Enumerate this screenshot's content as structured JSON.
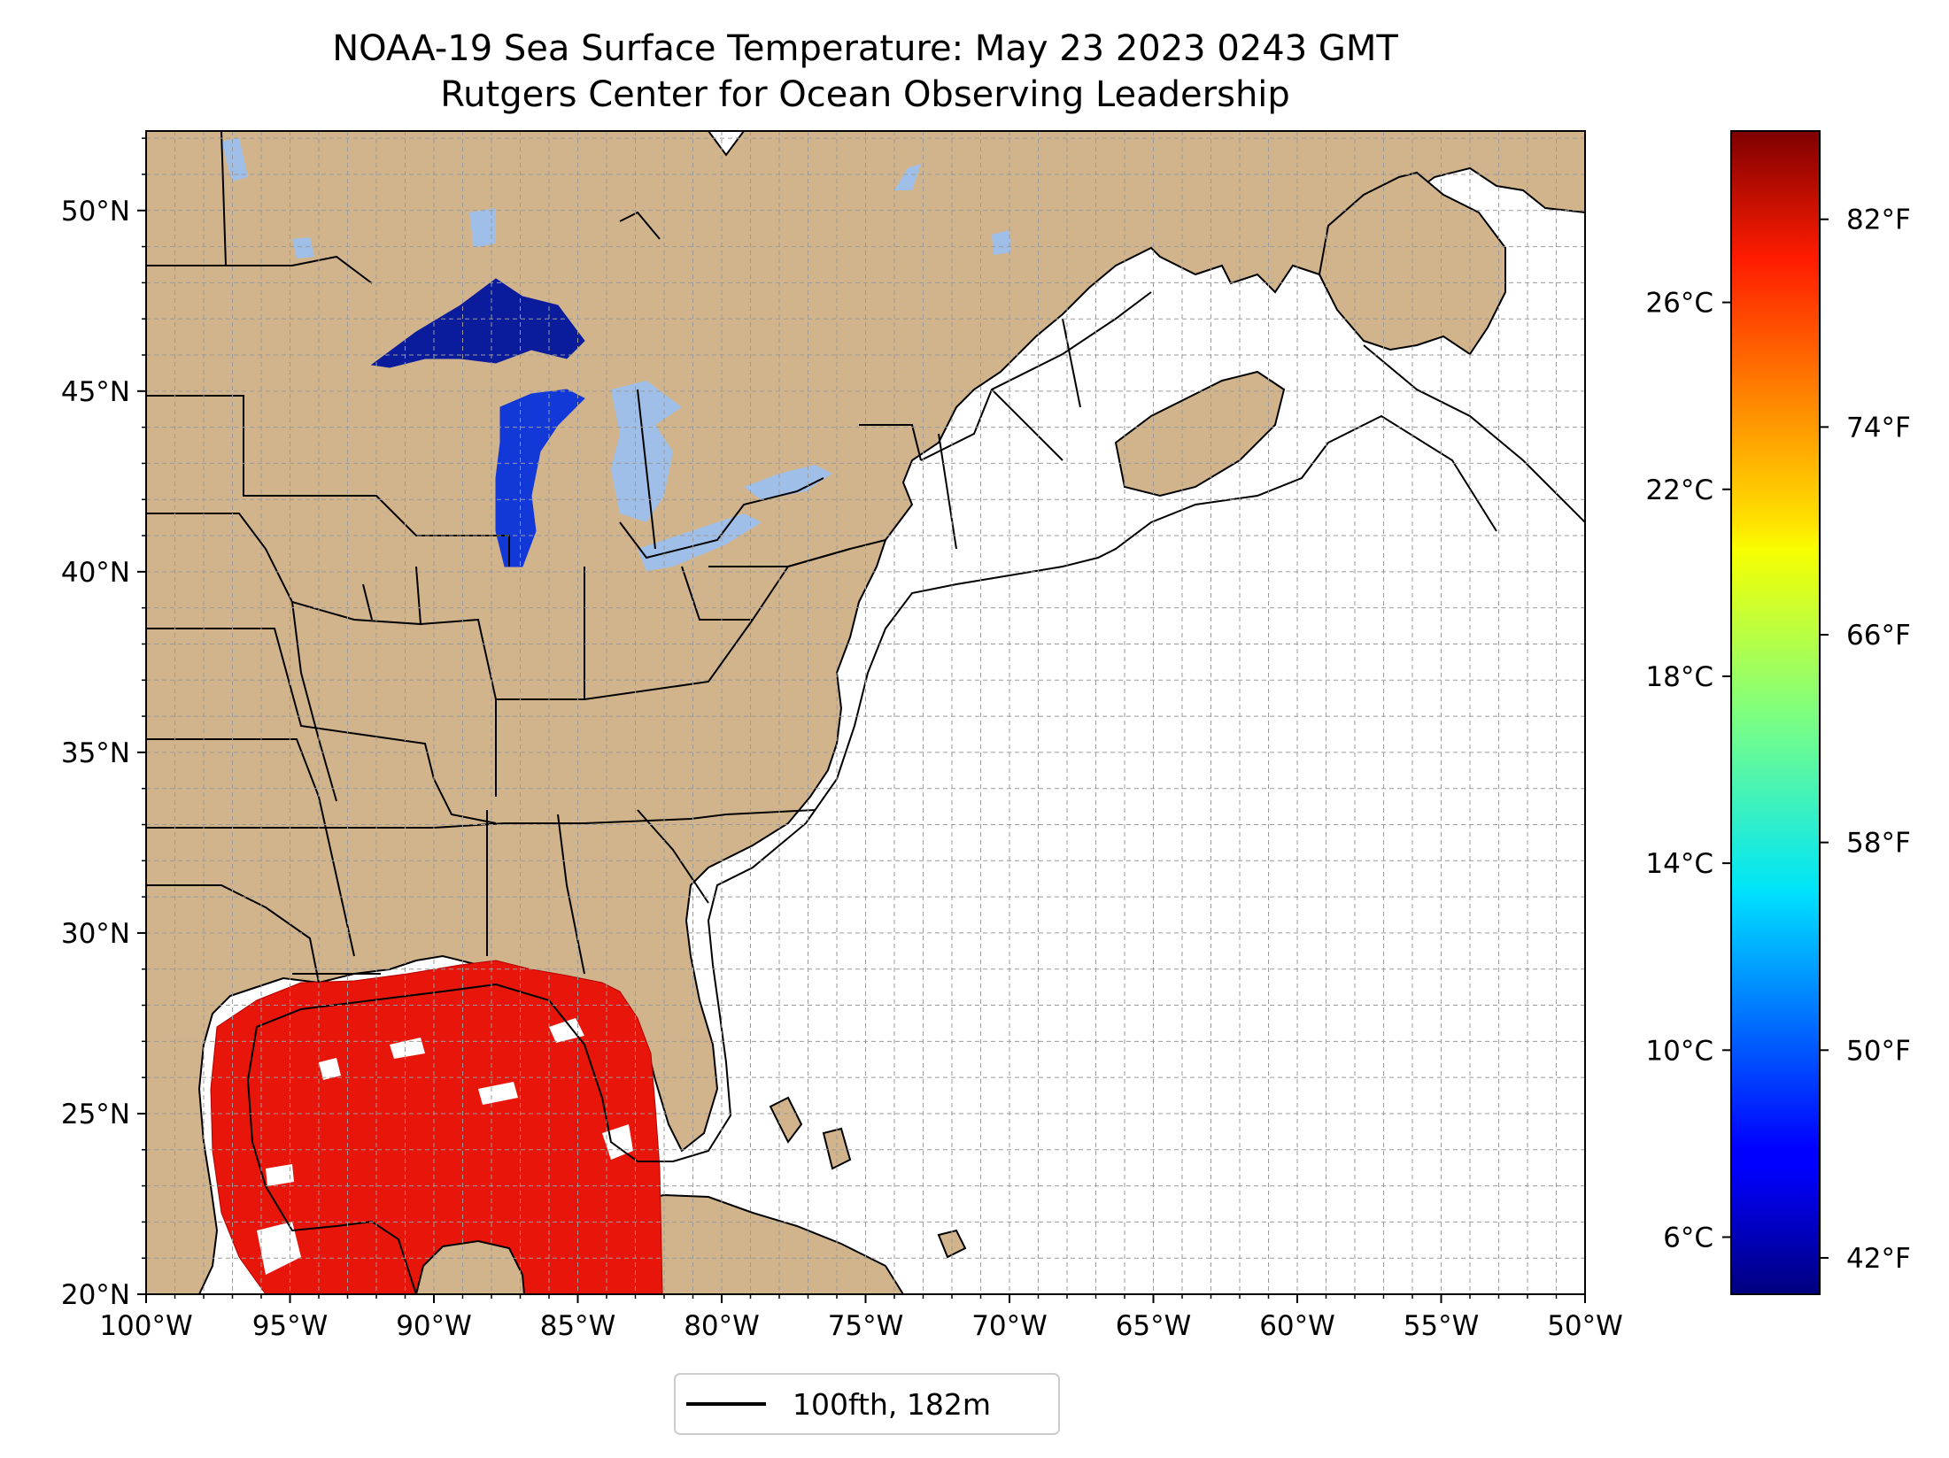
{
  "title": "NOAA-19 Sea Surface Temperature: May 23 2023 0243 GMT",
  "subtitle": "Rutgers Center for Ocean Observing Leadership",
  "map": {
    "lon_range": [
      -100,
      -50
    ],
    "lat_range": [
      20,
      52.2
    ],
    "lon_ticks": [
      {
        "value": -100,
        "label": "100°W"
      },
      {
        "value": -95,
        "label": "95°W"
      },
      {
        "value": -90,
        "label": "90°W"
      },
      {
        "value": -85,
        "label": "85°W"
      },
      {
        "value": -80,
        "label": "80°W"
      },
      {
        "value": -75,
        "label": "75°W"
      },
      {
        "value": -70,
        "label": "70°W"
      },
      {
        "value": -65,
        "label": "65°W"
      },
      {
        "value": -60,
        "label": "60°W"
      },
      {
        "value": -55,
        "label": "55°W"
      },
      {
        "value": -50,
        "label": "50°W"
      }
    ],
    "lat_ticks": [
      {
        "value": 20,
        "label": "20°N"
      },
      {
        "value": 25,
        "label": "25°N"
      },
      {
        "value": 30,
        "label": "30°N"
      },
      {
        "value": 35,
        "label": "35°N"
      },
      {
        "value": 40,
        "label": "40°N"
      },
      {
        "value": 45,
        "label": "45°N"
      },
      {
        "value": 50,
        "label": "50°N"
      }
    ],
    "grid": true,
    "land_color": "#d2b48c",
    "ocean_color": "#ffffff",
    "lake_color": "#9fbfe8"
  },
  "colorbar": {
    "colormap": "jet",
    "celsius_ticks": [
      {
        "value": 6,
        "label": "6°C"
      },
      {
        "value": 10,
        "label": "10°C"
      },
      {
        "value": 14,
        "label": "14°C"
      },
      {
        "value": 18,
        "label": "18°C"
      },
      {
        "value": 22,
        "label": "22°C"
      },
      {
        "value": 26,
        "label": "26°C"
      }
    ],
    "fahrenheit_ticks": [
      {
        "value": 42,
        "label": "42°F"
      },
      {
        "value": 50,
        "label": "50°F"
      },
      {
        "value": 58,
        "label": "58°F"
      },
      {
        "value": 66,
        "label": "66°F"
      },
      {
        "value": 74,
        "label": "74°F"
      },
      {
        "value": 82,
        "label": "82°F"
      }
    ],
    "fahrenheit_range": [
      40.6,
      85.4
    ]
  },
  "legend": {
    "label": "100fth, 182m",
    "color": "#000000"
  }
}
